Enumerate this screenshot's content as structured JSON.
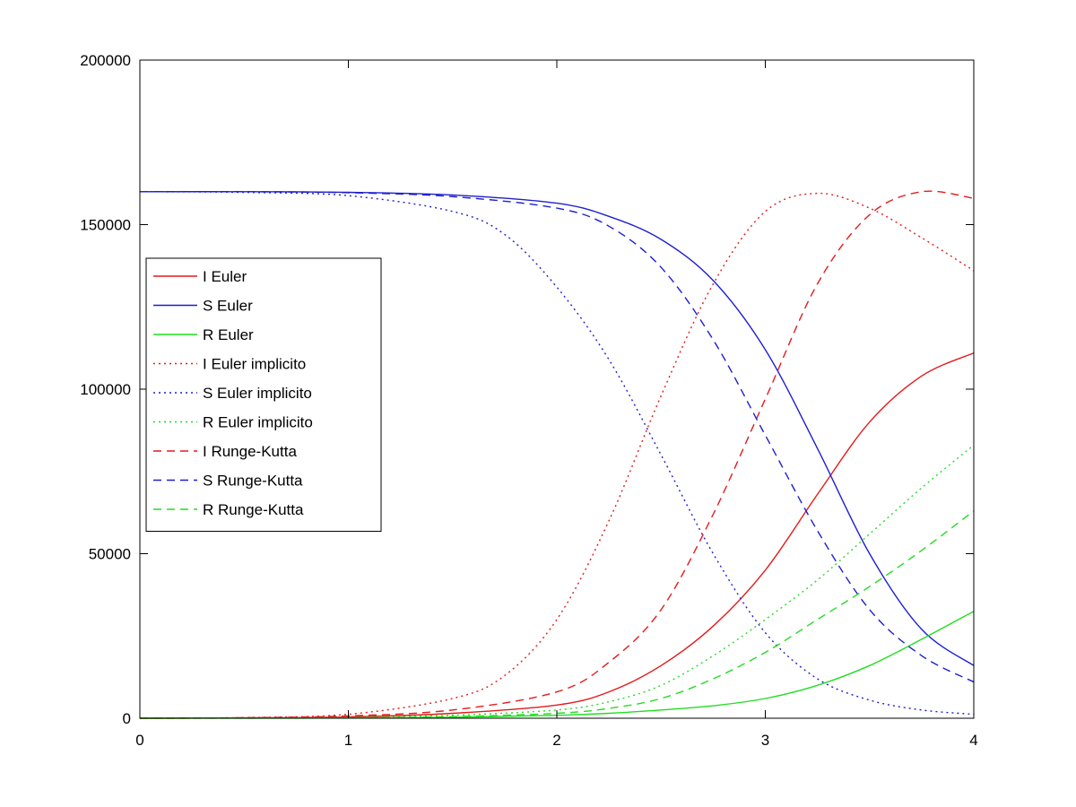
{
  "chart_data": {
    "type": "line",
    "title": "",
    "xlabel": "",
    "ylabel": "",
    "xlim": [
      0,
      4
    ],
    "ylim": [
      0,
      200000
    ],
    "x_ticks": [
      0,
      1,
      2,
      3,
      4
    ],
    "x_tick_labels": [
      "0",
      "1",
      "2",
      "3",
      "4"
    ],
    "y_ticks": [
      0,
      50000,
      100000,
      150000,
      200000
    ],
    "y_tick_labels": [
      "0",
      "50000",
      "100000",
      "150000",
      "200000"
    ],
    "grid": false,
    "legend_position": "middle-left",
    "series": [
      {
        "name": "I Euler",
        "color": "#e41a1c",
        "style": "solid",
        "x": [
          0,
          0.5,
          1,
          1.5,
          2,
          2.25,
          2.5,
          2.75,
          3,
          3.25,
          3.5,
          3.75,
          4
        ],
        "y": [
          0,
          100,
          400,
          1500,
          4000,
          8000,
          16000,
          28000,
          45000,
          68000,
          90000,
          104000,
          111000
        ]
      },
      {
        "name": "S Euler",
        "color": "#1f1fd0",
        "style": "solid",
        "x": [
          0,
          0.5,
          1,
          1.5,
          2,
          2.25,
          2.5,
          2.75,
          3,
          3.25,
          3.5,
          3.75,
          4
        ],
        "y": [
          160000,
          160000,
          159800,
          159000,
          156500,
          152500,
          145500,
          133000,
          112000,
          82000,
          50000,
          27000,
          16000
        ]
      },
      {
        "name": "R Euler",
        "color": "#22dd22",
        "style": "solid",
        "x": [
          0,
          0.5,
          1,
          1.5,
          2,
          2.25,
          2.5,
          2.75,
          3,
          3.25,
          3.5,
          3.75,
          4
        ],
        "y": [
          0,
          20,
          80,
          300,
          900,
          1500,
          2500,
          3800,
          6000,
          10000,
          16000,
          24000,
          32500
        ]
      },
      {
        "name": "I Euler implicito",
        "color": "#e41a1c",
        "style": "dotted",
        "x": [
          0,
          0.5,
          1,
          1.5,
          1.75,
          2,
          2.25,
          2.5,
          2.75,
          3,
          3.25,
          3.5,
          3.75,
          4
        ],
        "y": [
          0,
          200,
          1200,
          6000,
          13000,
          30000,
          60000,
          98000,
          132000,
          154000,
          159500,
          155000,
          146000,
          136000
        ]
      },
      {
        "name": "S Euler implicito",
        "color": "#1f1fd0",
        "style": "dotted",
        "x": [
          0,
          0.5,
          1,
          1.5,
          1.75,
          2,
          2.25,
          2.5,
          2.75,
          3,
          3.25,
          3.5,
          3.75,
          4
        ],
        "y": [
          160000,
          159800,
          158800,
          154000,
          147000,
          131000,
          109000,
          80000,
          50000,
          26000,
          12000,
          5500,
          2500,
          1200
        ]
      },
      {
        "name": "R Euler implicito",
        "color": "#22dd22",
        "style": "dotted",
        "x": [
          0,
          0.5,
          1,
          1.5,
          2,
          2.25,
          2.5,
          2.75,
          3,
          3.25,
          3.5,
          3.75,
          4
        ],
        "y": [
          0,
          50,
          200,
          900,
          2500,
          5000,
          10000,
          19000,
          30000,
          42000,
          56000,
          70000,
          83000
        ]
      },
      {
        "name": "I Runge-Kutta",
        "color": "#e41a1c",
        "style": "dashed",
        "x": [
          0,
          0.5,
          1,
          1.5,
          2,
          2.25,
          2.5,
          2.75,
          3,
          3.25,
          3.5,
          3.75,
          4
        ],
        "y": [
          0,
          150,
          700,
          2500,
          8000,
          17000,
          33000,
          62000,
          97000,
          132000,
          153000,
          160000,
          158000
        ]
      },
      {
        "name": "S Runge-Kutta",
        "color": "#1f1fd0",
        "style": "dashed",
        "x": [
          0,
          0.5,
          1,
          1.5,
          2,
          2.25,
          2.5,
          2.75,
          3,
          3.25,
          3.5,
          3.75,
          4
        ],
        "y": [
          160000,
          160000,
          159700,
          158500,
          155000,
          149500,
          137000,
          115000,
          86000,
          57000,
          33000,
          19000,
          11000
        ]
      },
      {
        "name": "R Runge-Kutta",
        "color": "#22dd22",
        "style": "dashed",
        "x": [
          0,
          0.5,
          1,
          1.5,
          2,
          2.25,
          2.5,
          2.75,
          3,
          3.25,
          3.5,
          3.75,
          4
        ],
        "y": [
          0,
          30,
          150,
          500,
          1500,
          3000,
          6000,
          12000,
          20000,
          30000,
          40000,
          51000,
          63000
        ]
      }
    ]
  }
}
